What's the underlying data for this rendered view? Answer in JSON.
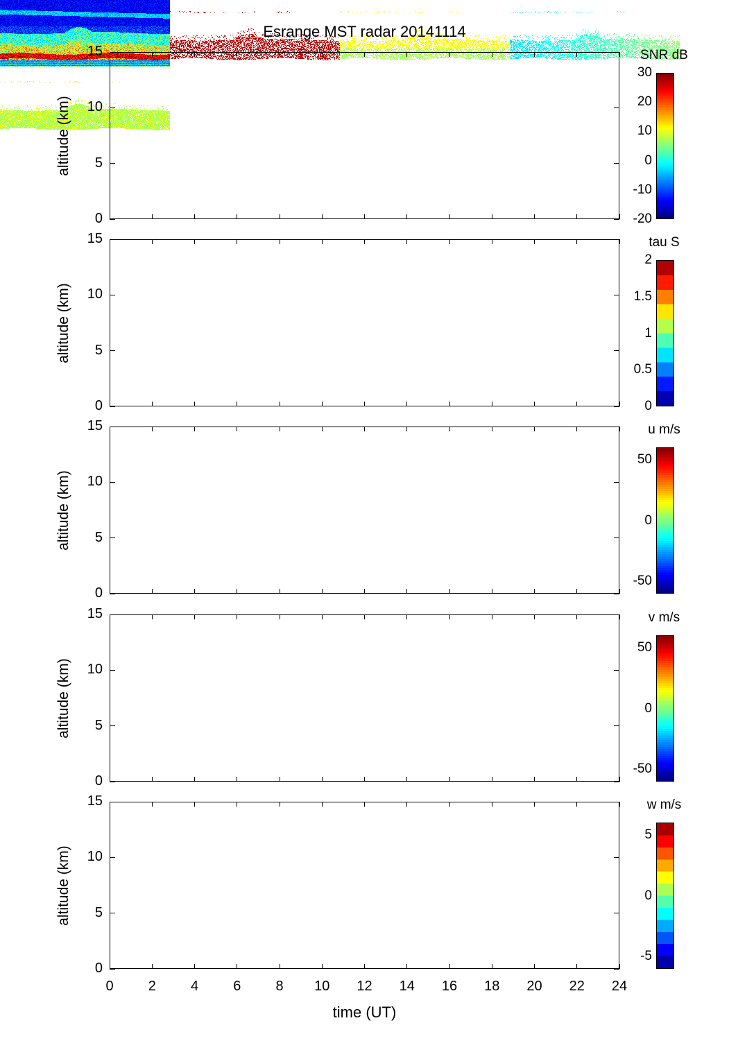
{
  "title": "Esrange MST radar 20141114",
  "chart_data": {
    "type": "heatmap",
    "title": "Esrange MST radar 20141114",
    "xlabel": "time (UT)",
    "xlim": [
      0,
      24
    ],
    "xticks": [
      0,
      2,
      4,
      6,
      8,
      10,
      12,
      14,
      16,
      18,
      20,
      22,
      24
    ],
    "panels": [
      {
        "ylabel": "altitude (km)",
        "ylim": [
          0,
          15
        ],
        "yticks": [
          0,
          5,
          10,
          15
        ],
        "colorbar_label": "SNR dB",
        "clim": [
          -20,
          30
        ],
        "cticks": [
          "-20",
          "-10",
          "0",
          "10",
          "20",
          "30"
        ],
        "colormap": "jet",
        "levels": 64
      },
      {
        "ylabel": "altitude (km)",
        "ylim": [
          0,
          15
        ],
        "yticks": [
          0,
          5,
          10,
          15
        ],
        "colorbar_label": "tau S",
        "clim": [
          0,
          2
        ],
        "cticks": [
          "0",
          "0.5",
          "1",
          "1.5",
          "2"
        ],
        "colormap": "jet",
        "levels": 10
      },
      {
        "ylabel": "altitude (km)",
        "ylim": [
          0,
          15
        ],
        "yticks": [
          0,
          5,
          10,
          15
        ],
        "colorbar_label": "u m/s",
        "clim": [
          -60,
          60
        ],
        "cticks": [
          "-50",
          "0",
          "50"
        ],
        "colormap": "jet",
        "levels": 64
      },
      {
        "ylabel": "altitude (km)",
        "ylim": [
          0,
          15
        ],
        "yticks": [
          0,
          5,
          10,
          15
        ],
        "colorbar_label": "v m/s",
        "clim": [
          -60,
          60
        ],
        "cticks": [
          "-50",
          "0",
          "50"
        ],
        "colormap": "jet",
        "levels": 64
      },
      {
        "ylabel": "altitude (km)",
        "ylim": [
          0,
          15
        ],
        "yticks": [
          0,
          5,
          10,
          15
        ],
        "colorbar_label": "w m/s",
        "clim": [
          -6,
          6
        ],
        "cticks": [
          "-5",
          "0",
          "5"
        ],
        "colormap": "jet",
        "levels": 12
      }
    ]
  }
}
